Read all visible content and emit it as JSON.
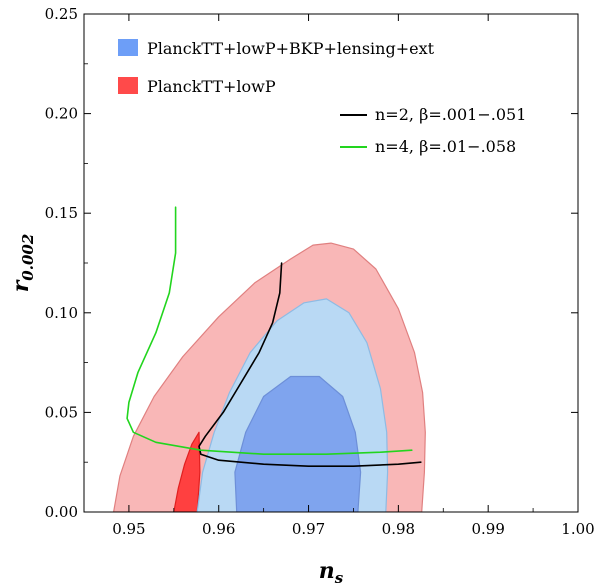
{
  "chart_data": {
    "type": "area",
    "xlabel": "n",
    "xlabel_sub": "s",
    "ylabel": "r",
    "ylabel_sub": "0.002",
    "xlim": [
      0.945,
      1.0
    ],
    "ylim": [
      0.0,
      0.25
    ],
    "xticks": [
      "0.95",
      "0.96",
      "0.97",
      "0.98",
      "0.99",
      "1.00"
    ],
    "yticks": [
      "0.00",
      "0.05",
      "0.10",
      "0.15",
      "0.20",
      "0.25"
    ],
    "xtick_values": [
      0.95,
      0.96,
      0.97,
      0.98,
      0.99,
      1.0
    ],
    "ytick_values": [
      0.0,
      0.05,
      0.1,
      0.15,
      0.2,
      0.25
    ],
    "legend_position": "top-left",
    "regions": [
      {
        "name": "PlanckTT+lowP",
        "level": "95%",
        "color": "#f9b7b7",
        "stroke": "#e08080",
        "points": [
          [
            0.9483,
            0.0
          ],
          [
            0.949,
            0.018
          ],
          [
            0.9505,
            0.038
          ],
          [
            0.9528,
            0.058
          ],
          [
            0.956,
            0.078
          ],
          [
            0.96,
            0.098
          ],
          [
            0.964,
            0.115
          ],
          [
            0.968,
            0.127
          ],
          [
            0.9705,
            0.134
          ],
          [
            0.9725,
            0.135
          ],
          [
            0.975,
            0.132
          ],
          [
            0.9775,
            0.122
          ],
          [
            0.98,
            0.102
          ],
          [
            0.9818,
            0.08
          ],
          [
            0.9827,
            0.06
          ],
          [
            0.983,
            0.04
          ],
          [
            0.9829,
            0.02
          ],
          [
            0.9826,
            0.0
          ]
        ]
      },
      {
        "name": "PlanckTT+lowP",
        "level": "68%",
        "color": "#ff4040",
        "stroke": "#e02020",
        "points": [
          [
            0.955,
            0.0
          ],
          [
            0.9555,
            0.012
          ],
          [
            0.9562,
            0.024
          ],
          [
            0.957,
            0.034
          ],
          [
            0.9578,
            0.04
          ],
          [
            0.9579,
            0.02
          ],
          [
            0.9576,
            0.0
          ]
        ]
      },
      {
        "name": "PlanckTT+lowP+BKP+lensing+ext",
        "level": "95%",
        "color": "#b9d9f4",
        "stroke": "#8ebbe4",
        "points": [
          [
            0.9576,
            0.0
          ],
          [
            0.9582,
            0.02
          ],
          [
            0.9595,
            0.04
          ],
          [
            0.9612,
            0.06
          ],
          [
            0.9635,
            0.08
          ],
          [
            0.9665,
            0.096
          ],
          [
            0.9695,
            0.105
          ],
          [
            0.972,
            0.107
          ],
          [
            0.9745,
            0.1
          ],
          [
            0.9765,
            0.085
          ],
          [
            0.978,
            0.062
          ],
          [
            0.9787,
            0.04
          ],
          [
            0.9788,
            0.02
          ],
          [
            0.9786,
            0.0
          ]
        ]
      },
      {
        "name": "PlanckTT+lowP+BKP+lensing+ext",
        "level": "68%",
        "color": "#7fa4ee",
        "stroke": "#6d8fd8",
        "points": [
          [
            0.962,
            0.0
          ],
          [
            0.9618,
            0.02
          ],
          [
            0.963,
            0.04
          ],
          [
            0.965,
            0.058
          ],
          [
            0.968,
            0.068
          ],
          [
            0.9712,
            0.068
          ],
          [
            0.9738,
            0.058
          ],
          [
            0.9752,
            0.04
          ],
          [
            0.9758,
            0.02
          ],
          [
            0.9755,
            0.0
          ]
        ]
      }
    ],
    "series": [
      {
        "name": "n=2, β=.001−.051",
        "color": "#000000",
        "points": [
          [
            0.967,
            0.125
          ],
          [
            0.9668,
            0.11
          ],
          [
            0.966,
            0.095
          ],
          [
            0.9645,
            0.08
          ],
          [
            0.9625,
            0.065
          ],
          [
            0.9605,
            0.05
          ],
          [
            0.9585,
            0.038
          ],
          [
            0.9578,
            0.033
          ],
          [
            0.958,
            0.029
          ],
          [
            0.96,
            0.026
          ],
          [
            0.965,
            0.024
          ],
          [
            0.97,
            0.023
          ],
          [
            0.975,
            0.023
          ],
          [
            0.98,
            0.024
          ],
          [
            0.9825,
            0.025
          ]
        ]
      },
      {
        "name": "n=4, β=.01−.058",
        "color": "#22d51e",
        "points": [
          [
            0.9552,
            0.153
          ],
          [
            0.9552,
            0.13
          ],
          [
            0.9545,
            0.11
          ],
          [
            0.953,
            0.09
          ],
          [
            0.951,
            0.07
          ],
          [
            0.95,
            0.055
          ],
          [
            0.9498,
            0.047
          ],
          [
            0.9505,
            0.04
          ],
          [
            0.953,
            0.035
          ],
          [
            0.958,
            0.031
          ],
          [
            0.965,
            0.029
          ],
          [
            0.972,
            0.029
          ],
          [
            0.978,
            0.03
          ],
          [
            0.9815,
            0.031
          ]
        ]
      }
    ],
    "legend": {
      "regions": [
        {
          "label": "PlanckTT+lowP+BKP+lensing+ext",
          "color": "#6d9ef7"
        },
        {
          "label": "PlanckTT+lowP",
          "color": "#ff4a4a"
        }
      ]
    }
  }
}
